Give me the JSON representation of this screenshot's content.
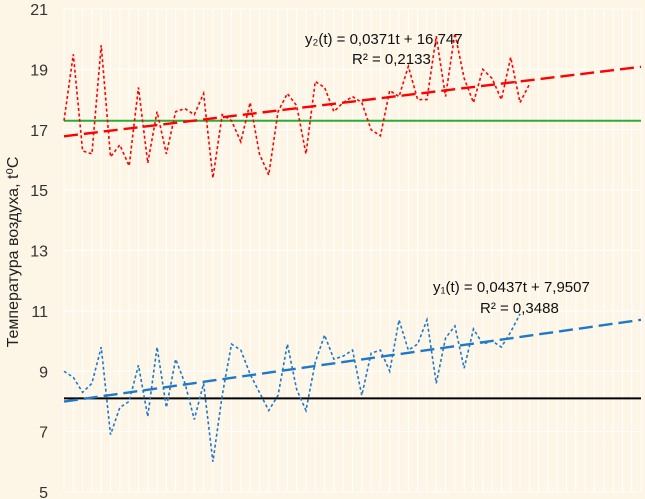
{
  "chart_data": {
    "type": "line",
    "ylabel": "Температура воздуха, t⁰C",
    "ylim": [
      5,
      21
    ],
    "yticks": [
      5,
      7,
      9,
      11,
      13,
      15,
      17,
      19,
      21
    ],
    "grid": true,
    "x_count": 62,
    "series": [
      {
        "role": "y2-data",
        "style": "dotted",
        "color": "#ff0000",
        "values": [
          17.3,
          19.5,
          16.3,
          16.2,
          19.8,
          16.1,
          16.5,
          15.8,
          18.4,
          15.9,
          17.6,
          16.2,
          17.6,
          17.7,
          17.5,
          18.2,
          15.4,
          17.5,
          17.3,
          16.6,
          17.9,
          16.2,
          15.5,
          17.6,
          18.2,
          17.8,
          16.2,
          18.6,
          18.4,
          17.6,
          17.9,
          18.1,
          17.9,
          17.0,
          16.8,
          18.3,
          18.1,
          19.1,
          18.0,
          18.0,
          20.1,
          18.1,
          20.2,
          18.7,
          17.9,
          19.0,
          18.7,
          18.0,
          19.4,
          17.9,
          18.5
        ]
      },
      {
        "role": "y1-data",
        "style": "dotted",
        "color": "#1f78c8",
        "values": [
          9.0,
          8.8,
          8.3,
          8.6,
          9.8,
          6.9,
          7.8,
          8.0,
          9.2,
          7.5,
          9.8,
          7.8,
          9.4,
          8.6,
          7.4,
          8.6,
          6.0,
          8.2,
          9.9,
          9.7,
          8.9,
          8.3,
          7.7,
          8.2,
          9.9,
          8.4,
          7.7,
          9.3,
          10.2,
          9.4,
          9.5,
          9.7,
          8.2,
          9.6,
          9.7,
          9.0,
          10.7,
          9.7,
          9.9,
          10.7,
          8.6,
          10.1,
          10.5,
          9.1,
          10.4,
          9.9,
          10.0,
          9.8,
          10.3,
          10.9
        ]
      }
    ],
    "trendlines": [
      {
        "role": "y2-trend",
        "color": "#ff0000",
        "slope": 0.0371,
        "intercept": 16.747,
        "equation": "y₂(t) = 0,0371t + 16,747",
        "r2": "R² = 0,2133"
      },
      {
        "role": "y1-trend",
        "color": "#1f78c8",
        "slope": 0.0437,
        "intercept": 7.9507,
        "equation": "y₁(t) = 0,0437t + 7,9507",
        "r2": "R² = 0,3488"
      }
    ],
    "reference_lines": [
      {
        "role": "y2-mean",
        "value": 17.3,
        "color": "#2eaa3a"
      },
      {
        "role": "y1-mean",
        "value": 8.1,
        "color": "#000000"
      }
    ]
  }
}
